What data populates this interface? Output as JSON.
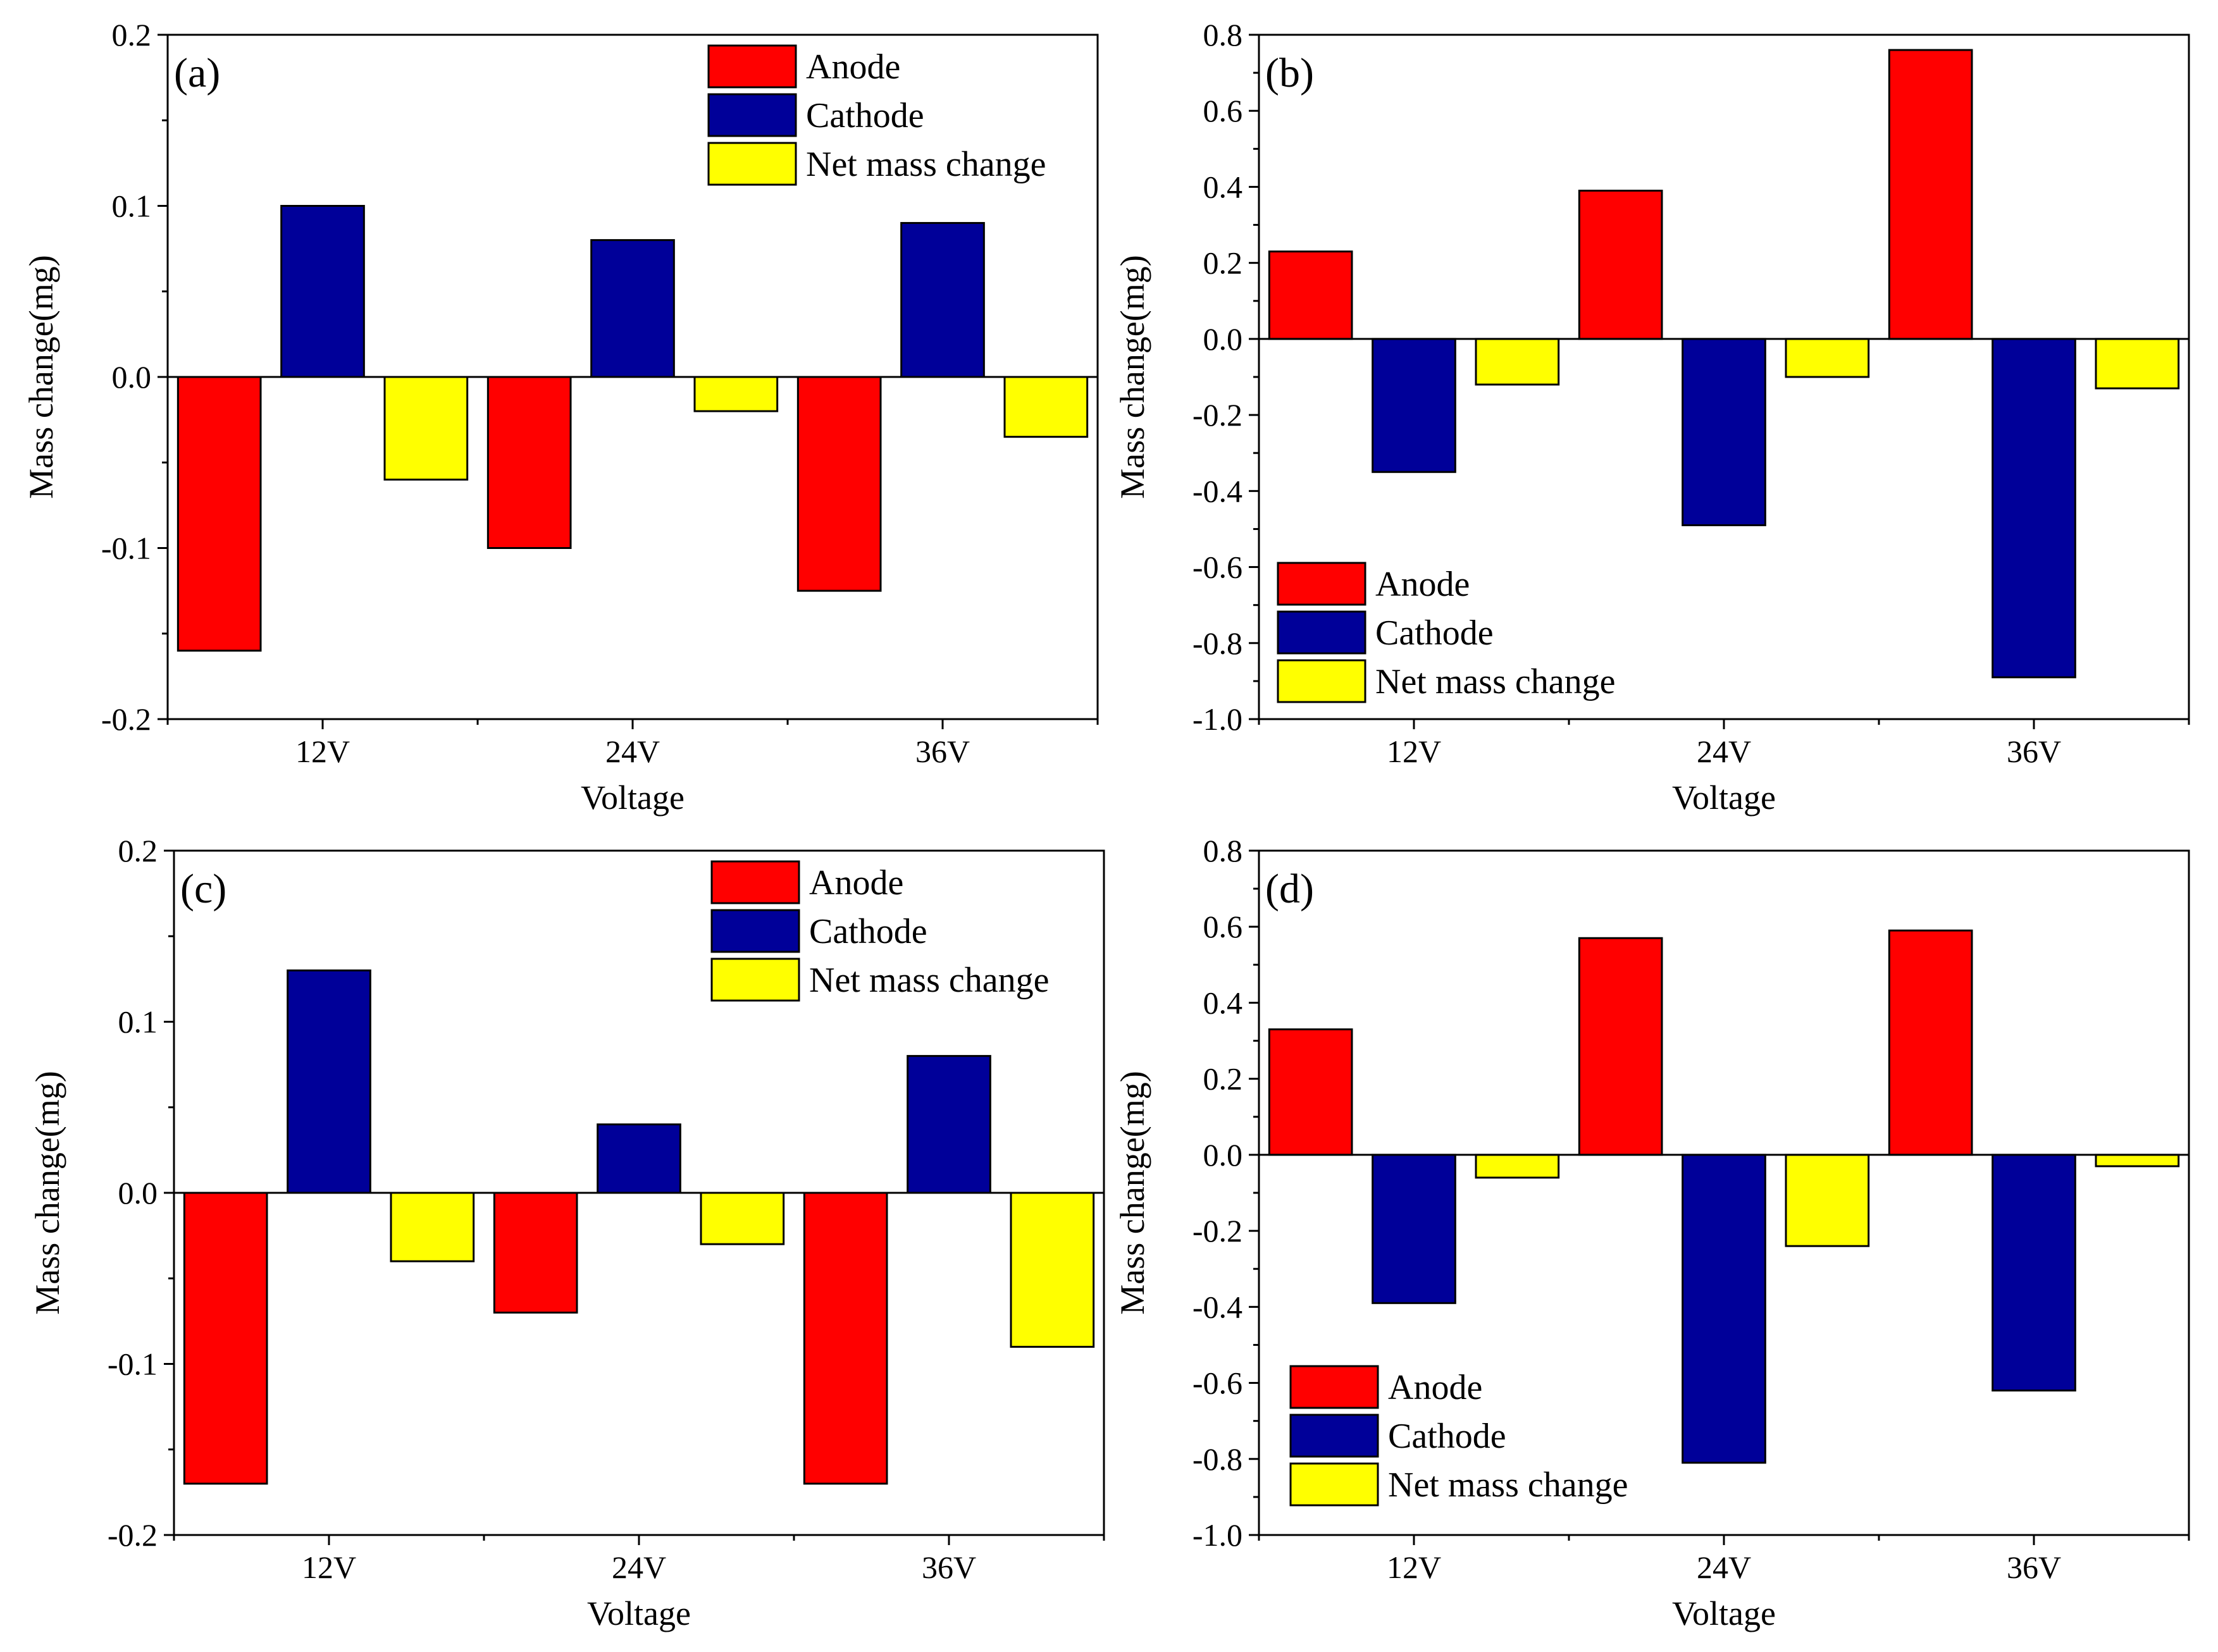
{
  "colors": {
    "anode": "#ff0000",
    "cathode": "#000099",
    "net": "#ffff00"
  },
  "chart_data": [
    {
      "type": "bar",
      "panel_label": "(a)",
      "categories": [
        "12V",
        "24V",
        "36V"
      ],
      "xlabel": "Voltage",
      "ylabel": "Mass change(mg)",
      "ylim": [
        -0.2,
        0.2
      ],
      "yticks": [
        -0.2,
        -0.1,
        0.0,
        0.1,
        0.2
      ],
      "ytick_labels": [
        "-0.2",
        "-0.1",
        "0.0",
        "0.1",
        "0.2"
      ],
      "legend_position": "top-right",
      "series": [
        {
          "name": "Anode",
          "color_key": "anode",
          "values": [
            -0.16,
            -0.1,
            -0.125
          ]
        },
        {
          "name": "Cathode",
          "color_key": "cathode",
          "values": [
            0.1,
            0.08,
            0.09
          ]
        },
        {
          "name": "Net mass change",
          "color_key": "net",
          "values": [
            -0.06,
            -0.02,
            -0.035
          ]
        }
      ]
    },
    {
      "type": "bar",
      "panel_label": "(b)",
      "categories": [
        "12V",
        "24V",
        "36V"
      ],
      "xlabel": "Voltage",
      "ylabel": "Mass change(mg)",
      "ylim": [
        -1.0,
        0.8
      ],
      "yticks": [
        -1.0,
        -0.8,
        -0.6,
        -0.4,
        -0.2,
        0.0,
        0.2,
        0.4,
        0.6,
        0.8
      ],
      "ytick_labels": [
        "-1.0",
        "-0.8",
        "-0.6",
        "-0.4",
        "-0.2",
        "0.0",
        "0.2",
        "0.4",
        "0.6",
        "0.8"
      ],
      "legend_position": "bottom-left",
      "series": [
        {
          "name": "Anode",
          "color_key": "anode",
          "values": [
            0.23,
            0.39,
            0.76
          ]
        },
        {
          "name": "Cathode",
          "color_key": "cathode",
          "values": [
            -0.35,
            -0.49,
            -0.89
          ]
        },
        {
          "name": "Net mass change",
          "color_key": "net",
          "values": [
            -0.12,
            -0.1,
            -0.13
          ]
        }
      ]
    },
    {
      "type": "bar",
      "panel_label": "(c)",
      "categories": [
        "12V",
        "24V",
        "36V"
      ],
      "xlabel": "Voltage",
      "ylabel": "Mass change(mg)",
      "ylim": [
        -0.2,
        0.2
      ],
      "yticks": [
        -0.2,
        -0.1,
        0.0,
        0.1,
        0.2
      ],
      "ytick_labels": [
        "-0.2",
        "-0.1",
        "0.0",
        "0.1",
        "0.2"
      ],
      "legend_position": "top-right",
      "series": [
        {
          "name": "Anode",
          "color_key": "anode",
          "values": [
            -0.17,
            -0.07,
            -0.17
          ]
        },
        {
          "name": "Cathode",
          "color_key": "cathode",
          "values": [
            0.13,
            0.04,
            0.08
          ]
        },
        {
          "name": "Net mass change",
          "color_key": "net",
          "values": [
            -0.04,
            -0.03,
            -0.09
          ]
        }
      ]
    },
    {
      "type": "bar",
      "panel_label": "(d)",
      "categories": [
        "12V",
        "24V",
        "36V"
      ],
      "xlabel": "Voltage",
      "ylabel": "Mass change(mg)",
      "ylim": [
        -1.0,
        0.8
      ],
      "yticks": [
        -1.0,
        -0.8,
        -0.6,
        -0.4,
        -0.2,
        0.0,
        0.2,
        0.4,
        0.6,
        0.8
      ],
      "ytick_labels": [
        "-1.0",
        "-0.8",
        "-0.6",
        "-0.4",
        "-0.2",
        "0.0",
        "0.2",
        "0.4",
        "0.6",
        "0.8"
      ],
      "legend_position": "bottom-left",
      "series": [
        {
          "name": "Anode",
          "color_key": "anode",
          "values": [
            0.33,
            0.57,
            0.59
          ]
        },
        {
          "name": "Cathode",
          "color_key": "cathode",
          "values": [
            -0.39,
            -0.81,
            -0.62
          ]
        },
        {
          "name": "Net mass change",
          "color_key": "net",
          "values": [
            -0.06,
            -0.24,
            -0.03
          ]
        }
      ]
    }
  ]
}
